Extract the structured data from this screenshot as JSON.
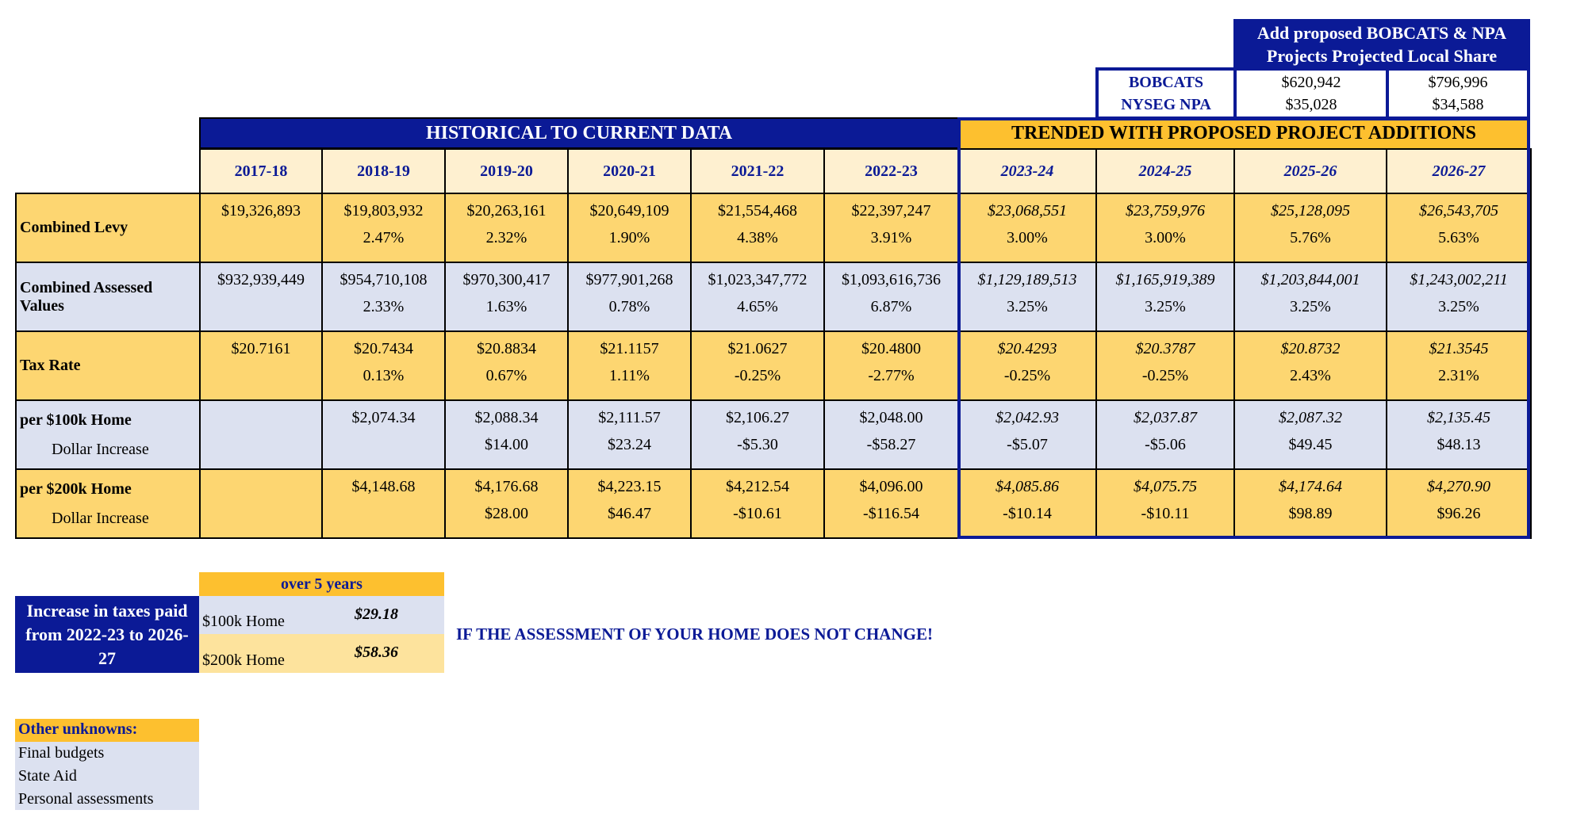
{
  "colors": {
    "navy": "#0b1a96",
    "gold": "#fdc02f",
    "light_gold": "#fdd671",
    "pale": "#fef0d0",
    "blue_grey": "#dce1f0"
  },
  "projects": {
    "title_line1": "Add proposed BOBCATS & NPA",
    "title_line2": "Projects Projected Local Share",
    "rows": [
      {
        "label": "BOBCATS",
        "values": [
          "$620,942",
          "$796,996"
        ]
      },
      {
        "label": "NYSEG NPA",
        "values": [
          "$35,028",
          "$34,588"
        ]
      }
    ]
  },
  "historical_header": "HISTORICAL TO CURRENT DATA",
  "trended_header": "TRENDED WITH PROPOSED PROJECT ADDITIONS",
  "years": [
    "2017-18",
    "2018-19",
    "2019-20",
    "2020-21",
    "2021-22",
    "2022-23",
    "2023-24",
    "2024-25",
    "2025-26",
    "2026-27"
  ],
  "rows": [
    {
      "label": "Combined Levy",
      "sublabel": "",
      "style": "gold",
      "main": [
        "$19,326,893",
        "$19,803,932",
        "$20,263,161",
        "$20,649,109",
        "$21,554,468",
        "$22,397,247",
        "$23,068,551",
        "$23,759,976",
        "$25,128,095",
        "$26,543,705"
      ],
      "sub": [
        "",
        "2.47%",
        "2.32%",
        "1.90%",
        "4.38%",
        "3.91%",
        "3.00%",
        "3.00%",
        "5.76%",
        "5.63%"
      ]
    },
    {
      "label": "Combined Assessed Values",
      "sublabel": "",
      "style": "blue",
      "main": [
        "$932,939,449",
        "$954,710,108",
        "$970,300,417",
        "$977,901,268",
        "$1,023,347,772",
        "$1,093,616,736",
        "$1,129,189,513",
        "$1,165,919,389",
        "$1,203,844,001",
        "$1,243,002,211"
      ],
      "sub": [
        "",
        "2.33%",
        "1.63%",
        "0.78%",
        "4.65%",
        "6.87%",
        "3.25%",
        "3.25%",
        "3.25%",
        "3.25%"
      ]
    },
    {
      "label": "Tax Rate",
      "sublabel": "",
      "style": "gold",
      "main": [
        "$20.7161",
        "$20.7434",
        "$20.8834",
        "$21.1157",
        "$21.0627",
        "$20.4800",
        "$20.4293",
        "$20.3787",
        "$20.8732",
        "$21.3545"
      ],
      "sub": [
        "",
        "0.13%",
        "0.67%",
        "1.11%",
        "-0.25%",
        "-2.77%",
        "-0.25%",
        "-0.25%",
        "2.43%",
        "2.31%"
      ]
    },
    {
      "label": "per $100k Home",
      "sublabel": "Dollar Increase",
      "style": "blue",
      "main": [
        "",
        "$2,074.34",
        "$2,088.34",
        "$2,111.57",
        "$2,106.27",
        "$2,048.00",
        "$2,042.93",
        "$2,037.87",
        "$2,087.32",
        "$2,135.45"
      ],
      "sub": [
        "",
        "",
        "$14.00",
        "$23.24",
        "-$5.30",
        "-$58.27",
        "-$5.07",
        "-$5.06",
        "$49.45",
        "$48.13"
      ]
    },
    {
      "label": "per $200k Home",
      "sublabel": "Dollar Increase",
      "style": "gold",
      "main": [
        "",
        "$4,148.68",
        "$4,176.68",
        "$4,223.15",
        "$4,212.54",
        "$4,096.00",
        "$4,085.86",
        "$4,075.75",
        "$4,174.64",
        "$4,270.90"
      ],
      "sub": [
        "",
        "",
        "$28.00",
        "$46.47",
        "-$10.61",
        "-$116.54",
        "-$10.14",
        "-$10.11",
        "$98.89",
        "$96.26"
      ]
    }
  ],
  "summary": {
    "period_label": "over 5 years",
    "title": "Increase in taxes paid from 2022-23 to 2026-27",
    "rows": [
      {
        "label": "$100k Home",
        "value": "$29.18"
      },
      {
        "label": "$200k Home",
        "value": "$58.36"
      }
    ],
    "note": "IF THE ASSESSMENT OF YOUR HOME DOES NOT CHANGE!"
  },
  "unknowns": {
    "title": "Other unknowns:",
    "items": [
      "Final budgets",
      "State Aid",
      "Personal assessments"
    ]
  }
}
